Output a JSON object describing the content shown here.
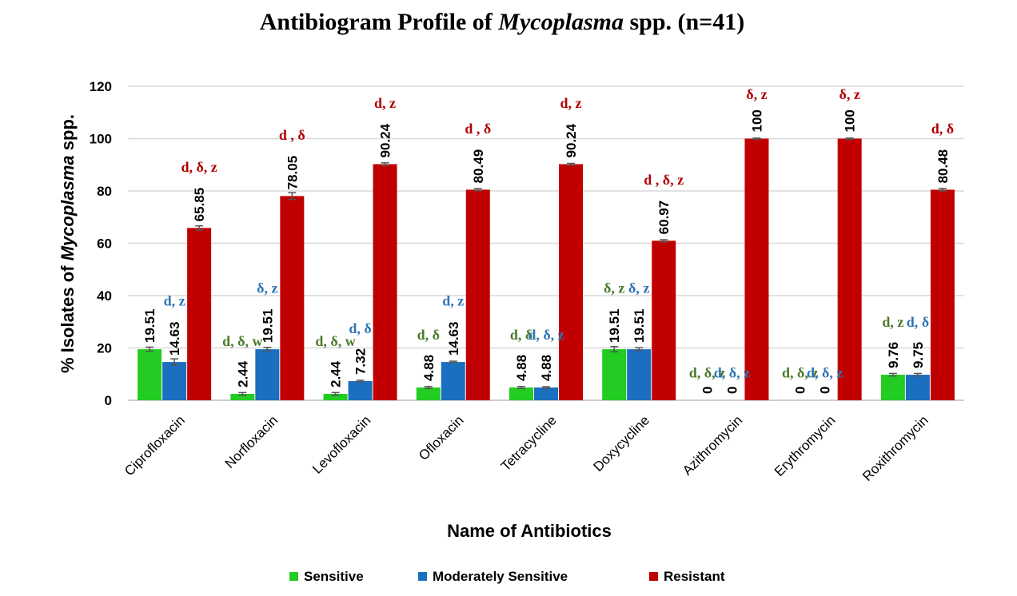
{
  "chart_data": {
    "type": "bar",
    "title": {
      "prefix": "Antibiogram Profile of ",
      "italic": "Mycoplasma",
      "suffix": " spp. (n=41)"
    },
    "xlabel": "Name of Antibiotics",
    "ylabel": {
      "prefix": "% Isolates of ",
      "italic": "Mycoplasma",
      "suffix": " spp."
    },
    "ylim": [
      0,
      120
    ],
    "yticks": [
      0,
      20,
      40,
      60,
      80,
      100,
      120
    ],
    "grid": true,
    "legend_position": "bottom",
    "categories": [
      "Ciprofloxacin",
      "Norfloxacin",
      "Levofloxacin",
      "Ofloxacin",
      "Tetracycline",
      "Doxycycline",
      "Azithromycin",
      "Erythromycin",
      "Roxithromycin"
    ],
    "series": [
      {
        "name": "Sensitive",
        "color": "#22cc22",
        "annot_color": "#4a7a2a",
        "values": [
          19.51,
          2.44,
          2.44,
          4.88,
          4.88,
          19.51,
          0,
          0,
          9.76
        ],
        "labels": [
          "19.51",
          "2.44",
          "2.44",
          "4.88",
          "4.88",
          "19.51",
          "0",
          "0",
          "9.76"
        ],
        "errors": [
          0.8,
          0.5,
          0.5,
          0.4,
          0.4,
          1.0,
          0,
          0,
          0.5
        ],
        "annotations": [
          "",
          "d, δ, w",
          "d, δ, w",
          "d, δ",
          "d, δ",
          "δ, z",
          "d, δ, z",
          "d, δ, z",
          "d, z"
        ]
      },
      {
        "name": "Moderately Sensitive",
        "color": "#1a6fc0",
        "annot_color": "#2e75b6",
        "values": [
          14.63,
          19.51,
          7.32,
          14.63,
          4.88,
          19.51,
          0,
          0,
          9.75
        ],
        "labels": [
          "14.63",
          "19.51",
          "7.32",
          "14.63",
          "4.88",
          "19.51",
          "0",
          "0",
          "9.75"
        ],
        "errors": [
          1.2,
          0.7,
          0.3,
          0.3,
          0.3,
          0.6,
          0,
          0,
          0.5
        ],
        "annotations": [
          "d, z",
          "δ, z",
          "d, δ",
          "d, z",
          "d, δ, z",
          "δ, z",
          "d, δ, z",
          "d, δ, z",
          "d, δ"
        ]
      },
      {
        "name": "Resistant",
        "color": "#c00000",
        "annot_color": "#b00000",
        "values": [
          65.85,
          78.05,
          90.24,
          80.49,
          90.24,
          60.97,
          100,
          100,
          80.48
        ],
        "labels": [
          "65.85",
          "78.05",
          "90.24",
          "80.49",
          "90.24",
          "60.97",
          "100",
          "100",
          "80.48"
        ],
        "errors": [
          0.8,
          1.3,
          0.5,
          0.4,
          0.3,
          0.4,
          0.2,
          0.2,
          0.5
        ],
        "annotations": [
          "d, δ, z",
          "d , δ",
          "d, z",
          "d , δ",
          "d, z",
          "d , δ, z",
          "δ, z",
          "δ, z",
          "d, δ"
        ]
      }
    ]
  }
}
